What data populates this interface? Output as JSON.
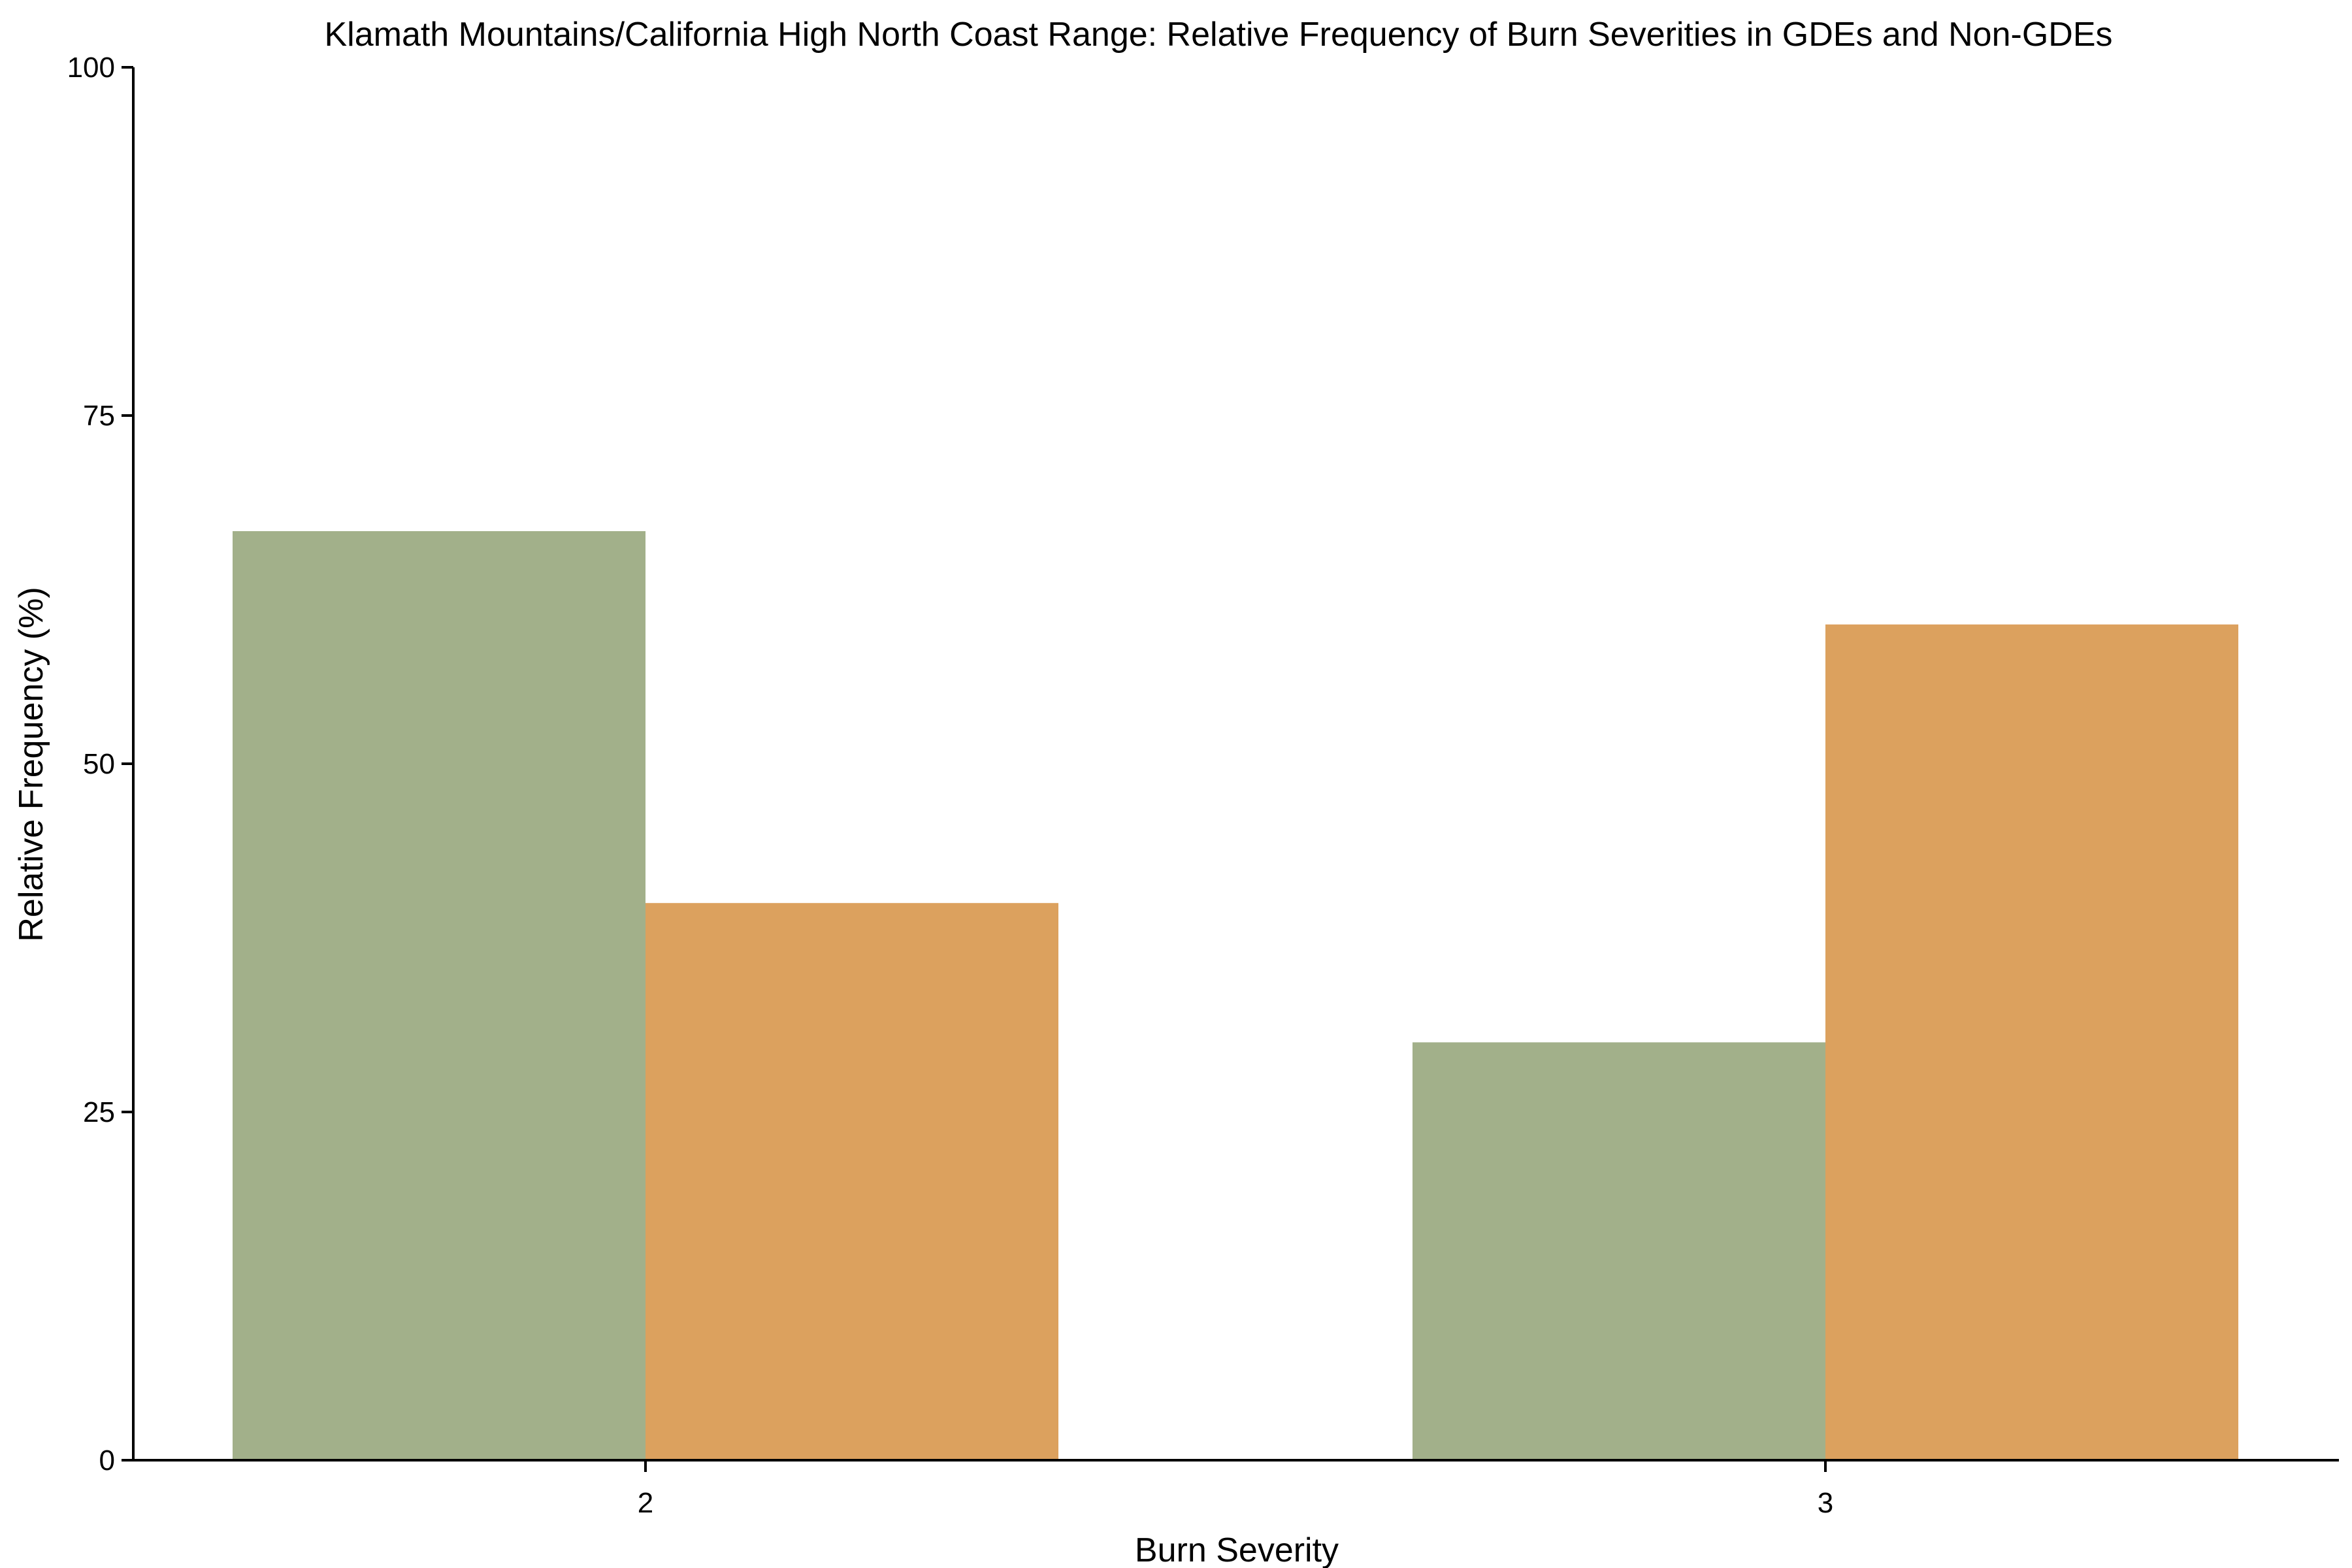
{
  "chart_data": {
    "type": "bar",
    "title": "Klamath Mountains/California High North Coast Range: Relative Frequency of Burn Severities in GDEs and Non-GDEs",
    "xlabel": "Burn Severity",
    "ylabel": "Relative Frequency (%)",
    "categories": [
      "2",
      "3"
    ],
    "series": [
      {
        "color": "#a2b08a",
        "values": [
          66.7,
          30.0
        ]
      },
      {
        "color": "#dca15e",
        "values": [
          40.0,
          60.0
        ]
      }
    ],
    "ylim": [
      0,
      100
    ],
    "yticks": [
      0,
      25,
      50,
      75,
      100
    ],
    "grid": false,
    "legend": "none"
  }
}
